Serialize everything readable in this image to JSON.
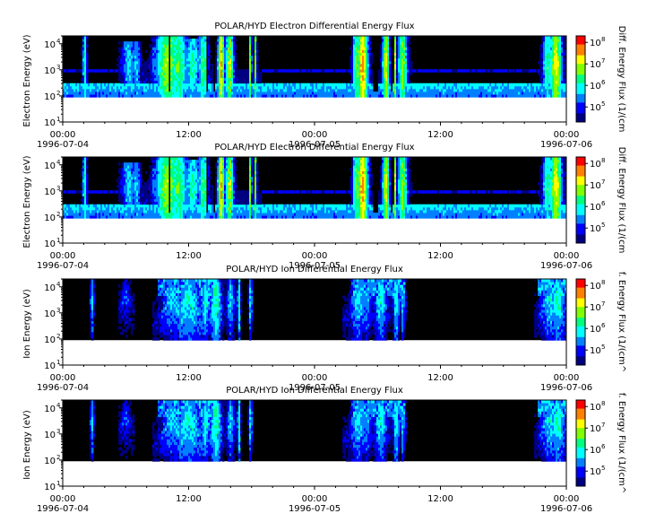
{
  "chart_data": [
    {
      "type": "heatmap",
      "title": "POLAR/HYD  Electron Differential Energy Flux",
      "ylabel": "Electron Energy (eV)",
      "colorbar_label": "Diff. Energy Flux (1/(cm",
      "y_scale": "log",
      "y_ticks": [
        {
          "exp": "1",
          "value": 10
        },
        {
          "exp": "2",
          "value": 100
        },
        {
          "exp": "3",
          "value": 1000
        },
        {
          "exp": "4",
          "value": 10000
        }
      ],
      "ylim": [
        10,
        20000
      ],
      "data_min_energy": 90,
      "x_ticks": [
        {
          "time": "00:00",
          "date": "1996-07-04",
          "hour": 0
        },
        {
          "time": "12:00",
          "date": "",
          "hour": 12
        },
        {
          "time": "00:00",
          "date": "1996-07-05",
          "hour": 24
        },
        {
          "time": "12:00",
          "date": "",
          "hour": 36
        },
        {
          "time": "00:00",
          "date": "1996-07-06",
          "hour": 48
        }
      ],
      "xlim_hours": [
        0,
        48
      ],
      "colorbar_ticks": [
        {
          "exp": "5",
          "value": 100000
        },
        {
          "exp": "6",
          "value": 1000000
        },
        {
          "exp": "7",
          "value": 10000000
        },
        {
          "exp": "8",
          "value": 100000000
        }
      ],
      "colorbar_range": [
        20000,
        200000000
      ],
      "species": "electron"
    },
    {
      "type": "heatmap",
      "title": "POLAR/HYD  Electron Differential Energy Flux",
      "ylabel": "Electron Energy (eV)",
      "colorbar_label": "Diff. Energy Flux (1/(cm",
      "y_scale": "log",
      "y_ticks": [
        {
          "exp": "1",
          "value": 10
        },
        {
          "exp": "2",
          "value": 100
        },
        {
          "exp": "3",
          "value": 1000
        },
        {
          "exp": "4",
          "value": 10000
        }
      ],
      "ylim": [
        10,
        20000
      ],
      "data_min_energy": 90,
      "x_ticks": [
        {
          "time": "00:00",
          "date": "1996-07-04",
          "hour": 0
        },
        {
          "time": "12:00",
          "date": "",
          "hour": 12
        },
        {
          "time": "00:00",
          "date": "1996-07-05",
          "hour": 24
        },
        {
          "time": "12:00",
          "date": "",
          "hour": 36
        },
        {
          "time": "00:00",
          "date": "1996-07-06",
          "hour": 48
        }
      ],
      "xlim_hours": [
        0,
        48
      ],
      "colorbar_ticks": [
        {
          "exp": "5",
          "value": 100000
        },
        {
          "exp": "6",
          "value": 1000000
        },
        {
          "exp": "7",
          "value": 10000000
        },
        {
          "exp": "8",
          "value": 100000000
        }
      ],
      "colorbar_range": [
        20000,
        200000000
      ],
      "species": "electron"
    },
    {
      "type": "heatmap",
      "title": "POLAR/HYD  Ion Differential Energy Flux",
      "ylabel": "Ion Energy (eV)",
      "colorbar_label": "f. Energy Flux (1/(cm^",
      "y_scale": "log",
      "y_ticks": [
        {
          "exp": "1",
          "value": 10
        },
        {
          "exp": "2",
          "value": 100
        },
        {
          "exp": "3",
          "value": 1000
        },
        {
          "exp": "4",
          "value": 10000
        }
      ],
      "ylim": [
        10,
        20000
      ],
      "data_min_energy": 90,
      "x_ticks": [
        {
          "time": "00:00",
          "date": "1996-07-04",
          "hour": 0
        },
        {
          "time": "12:00",
          "date": "",
          "hour": 12
        },
        {
          "time": "00:00",
          "date": "1996-07-05",
          "hour": 24
        },
        {
          "time": "12:00",
          "date": "",
          "hour": 36
        },
        {
          "time": "00:00",
          "date": "1996-07-06",
          "hour": 48
        }
      ],
      "xlim_hours": [
        0,
        48
      ],
      "colorbar_ticks": [
        {
          "exp": "5",
          "value": 100000
        },
        {
          "exp": "6",
          "value": 1000000
        },
        {
          "exp": "7",
          "value": 10000000
        },
        {
          "exp": "8",
          "value": 100000000
        }
      ],
      "colorbar_range": [
        20000,
        200000000
      ],
      "species": "ion"
    },
    {
      "type": "heatmap",
      "title": "POLAR/HYD  Ion Differential Energy Flux",
      "ylabel": "Ion Energy (eV)",
      "colorbar_label": "f. Energy Flux (1/(cm^",
      "y_scale": "log",
      "y_ticks": [
        {
          "exp": "1",
          "value": 10
        },
        {
          "exp": "2",
          "value": 100
        },
        {
          "exp": "3",
          "value": 1000
        },
        {
          "exp": "4",
          "value": 10000
        }
      ],
      "ylim": [
        10,
        20000
      ],
      "data_min_energy": 90,
      "x_ticks": [
        {
          "time": "00:00",
          "date": "1996-07-04",
          "hour": 0
        },
        {
          "time": "12:00",
          "date": "",
          "hour": 12
        },
        {
          "time": "00:00",
          "date": "1996-07-05",
          "hour": 24
        },
        {
          "time": "12:00",
          "date": "",
          "hour": 36
        },
        {
          "time": "00:00",
          "date": "1996-07-06",
          "hour": 48
        }
      ],
      "xlim_hours": [
        0,
        48
      ],
      "colorbar_ticks": [
        {
          "exp": "5",
          "value": 100000
        },
        {
          "exp": "6",
          "value": 1000000
        },
        {
          "exp": "7",
          "value": 10000000
        },
        {
          "exp": "8",
          "value": 100000000
        }
      ],
      "colorbar_range": [
        20000,
        200000000
      ],
      "species": "ion"
    }
  ],
  "colormap": [
    "#000080",
    "#0000ff",
    "#0080ff",
    "#00ffff",
    "#00ff80",
    "#80ff00",
    "#ffff00",
    "#ff8000",
    "#ff0000"
  ],
  "background_color": "#000000"
}
